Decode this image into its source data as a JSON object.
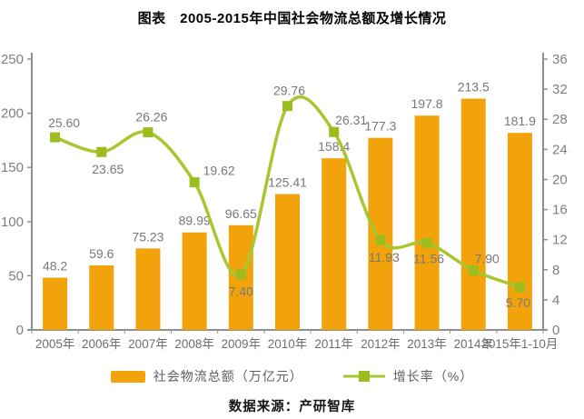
{
  "title": "图表　2005-2015年中国社会物流总额及增长情况",
  "source": "数据来源：产研智库",
  "legend": {
    "bar_label": "社会物流总额（万亿元）",
    "line_label": "增长率（%）"
  },
  "colors": {
    "bar": "#F2A30B",
    "line": "#A8C62F",
    "marker": "#9CBD1E",
    "axis": "#8F8F8F",
    "tick_label": "#7F7F7F",
    "data_label": "#787878",
    "x_label": "#6E6E6E",
    "legend_text": "#5F5F5F"
  },
  "chart_data": {
    "type": "bar+line combo (bar on left axis, line on right axis)",
    "title": "图表　2005-2015年中国社会物流总额及增长情况",
    "categories": [
      "2005年",
      "2006年",
      "2007年",
      "2008年",
      "2009年",
      "2010年",
      "2011年",
      "2012年",
      "2013年",
      "2014年",
      "2015年1-10月"
    ],
    "series": [
      {
        "name": "社会物流总额（万亿元）",
        "type": "bar",
        "axis": "left",
        "values": [
          48.2,
          59.6,
          75.23,
          89.99,
          96.65,
          125.41,
          158.4,
          177.3,
          197.8,
          213.5,
          181.9
        ],
        "labels": [
          "48.2",
          "59.6",
          "75.23",
          "89.99",
          "96.65",
          "125.41",
          "158.4",
          "177.3",
          "197.8",
          "213.5",
          "181.9"
        ]
      },
      {
        "name": "增长率（%）",
        "type": "line",
        "axis": "right",
        "values": [
          25.6,
          23.65,
          26.26,
          19.62,
          7.4,
          29.76,
          26.31,
          11.93,
          11.56,
          7.9,
          5.7
        ],
        "labels": [
          "25.60",
          "23.65",
          "26.26",
          "19.62",
          "7.40",
          "29.76",
          "26.31",
          "11.93",
          "11.56",
          "7.90",
          "5.70"
        ],
        "label_offsets": [
          [
            10,
            -11
          ],
          [
            7,
            24
          ],
          [
            4,
            -12
          ],
          [
            27,
            -8
          ],
          [
            0,
            24
          ],
          [
            2,
            -12
          ],
          [
            19,
            -8
          ],
          [
            4,
            24
          ],
          [
            2,
            22
          ],
          [
            15,
            -8
          ],
          [
            -2,
            22
          ]
        ]
      }
    ],
    "left_axis": {
      "min": 0,
      "max": 250,
      "step": 50,
      "ticks": [
        "0",
        "50",
        "100",
        "150",
        "200",
        "250"
      ]
    },
    "right_axis": {
      "min": 0,
      "max": 36,
      "step": 4,
      "ticks": [
        "0",
        "4",
        "8",
        "12",
        "16",
        "20",
        "24",
        "28",
        "32",
        "36"
      ]
    },
    "grid": false,
    "legend_position": "bottom"
  }
}
